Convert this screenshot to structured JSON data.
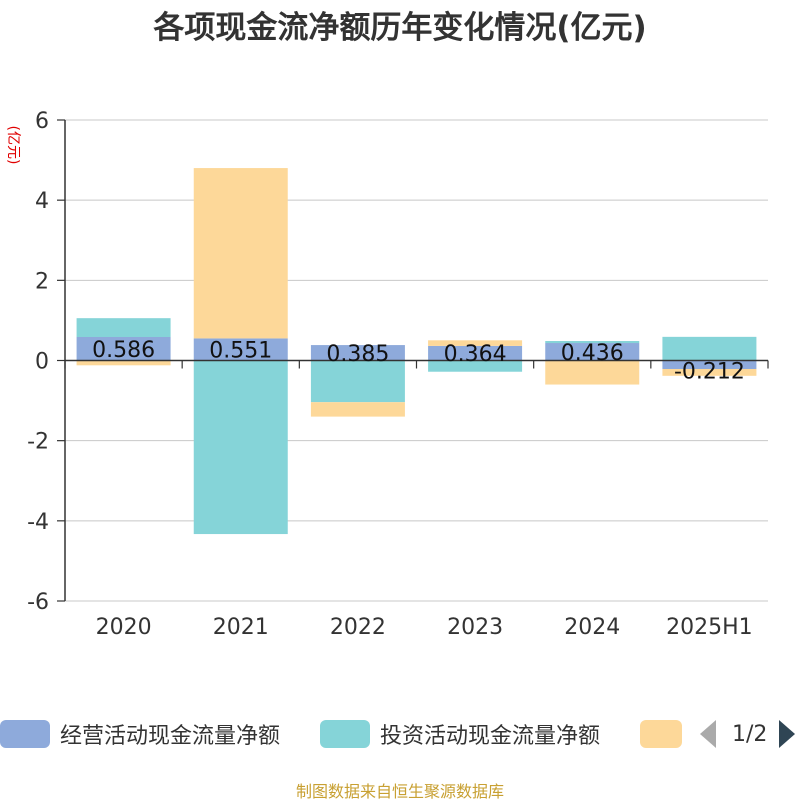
{
  "chart_data": {
    "type": "bar",
    "stacked": true,
    "title": "各项现金流净额历年变化情况(亿元)",
    "ylabel": "(亿元)",
    "categories": [
      "2020",
      "2021",
      "2022",
      "2023",
      "2024",
      "2025H1"
    ],
    "ylim": [
      -6,
      6
    ],
    "yticks": [
      6,
      4,
      2,
      0,
      -2,
      -4,
      -6
    ],
    "grid": true,
    "legend_position": "bottom",
    "series": [
      {
        "name": "经营活动现金流量净额",
        "color": "#8eaadb",
        "values": [
          0.586,
          0.551,
          0.385,
          0.364,
          0.436,
          -0.212
        ],
        "data_labels": [
          "0.586",
          "0.551",
          "0.385",
          "0.364",
          "0.436",
          "-0.212"
        ]
      },
      {
        "name": "投资活动现金流量净额",
        "color": "#85d4d8",
        "values": [
          0.47,
          -4.33,
          -1.04,
          -0.28,
          0.05,
          0.59
        ]
      },
      {
        "name": "",
        "color": "#fdd899",
        "values": [
          -0.12,
          4.25,
          -0.36,
          0.14,
          -0.6,
          -0.17
        ]
      }
    ]
  },
  "legend": {
    "page": "1/2"
  },
  "source": "制图数据来自恒生聚源数据库"
}
